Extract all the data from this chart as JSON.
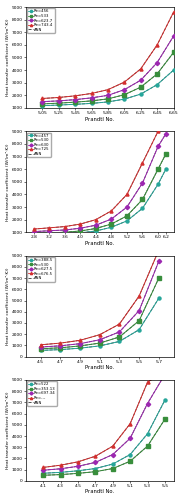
{
  "panels": [
    {
      "ylim": [
        1000,
        9000
      ],
      "yticks": [
        1000,
        2000,
        3000,
        4000,
        5000,
        6000,
        7000,
        8000,
        9000
      ],
      "ytick_labels": [
        "1000",
        "2000",
        "3000",
        "4000",
        "5000",
        "6000",
        "7000",
        "8000",
        "9000"
      ],
      "xlim": [
        4.85,
        6.65
      ],
      "xticks": [
        5.05,
        5.25,
        5.45,
        5.65,
        5.85,
        6.05,
        6.25,
        6.45,
        6.65
      ],
      "xtick_labels": [
        "5.05",
        "5.25",
        "5.45",
        "5.65",
        "5.85",
        "6.05",
        "6.25",
        "6.45",
        "6.65"
      ],
      "xlabel": "Prandtl No.",
      "ylabel": "Heat transfer coefficient (W/(m²·K))",
      "legend_labels": [
        "Re=456",
        "Re=533",
        "Re=623.7",
        "Re=743.4",
        "ANN"
      ],
      "series_colors": [
        "#26a69a",
        "#388e3c",
        "#9c27b0",
        "#d32f2f"
      ],
      "ann_color": "#333333",
      "pr_values": [
        5.05,
        5.25,
        5.45,
        5.65,
        5.85,
        6.05,
        6.25,
        6.45,
        6.65
      ],
      "series_data": [
        [
          1180,
          1230,
          1290,
          1360,
          1480,
          1700,
          2100,
          2850,
          4000
        ],
        [
          1320,
          1380,
          1460,
          1560,
          1720,
          2050,
          2650,
          3700,
          5400
        ],
        [
          1500,
          1560,
          1660,
          1800,
          2000,
          2450,
          3200,
          4600,
          6700
        ],
        [
          1750,
          1830,
          1960,
          2150,
          2450,
          3050,
          4100,
          6000,
          8600
        ]
      ],
      "ann_data": [
        [
          1180,
          1230,
          1290,
          1360,
          1480,
          1700,
          2100,
          2850,
          4000
        ],
        [
          1320,
          1380,
          1460,
          1560,
          1720,
          2050,
          2650,
          3700,
          5400
        ],
        [
          1500,
          1560,
          1660,
          1800,
          2000,
          2450,
          3200,
          4600,
          6700
        ],
        [
          1750,
          1830,
          1960,
          2150,
          2450,
          3050,
          4100,
          6000,
          8600
        ]
      ]
    },
    {
      "ylim": [
        1000,
        9000
      ],
      "yticks": [
        1000,
        2000,
        3000,
        4000,
        5000,
        6000,
        7000,
        8000,
        9000
      ],
      "ytick_labels": [
        "1000",
        "2000",
        "3000",
        "4000",
        "5000",
        "6000",
        "7000",
        "8000",
        "9000"
      ],
      "xlim": [
        2.6,
        6.4
      ],
      "xticks": [
        2.8,
        3.2,
        3.6,
        4.0,
        4.4,
        4.8,
        5.2,
        5.6,
        6.0,
        6.2
      ],
      "xtick_labels": [
        "2.8",
        "3.2",
        "3.6",
        "4.0",
        "4.4",
        "4.8",
        "5.2",
        "5.6",
        "6.0",
        "6.2"
      ],
      "xlabel": "Prandtl No.",
      "ylabel": "Heat transfer coefficient (W/(m²·K))",
      "legend_labels": [
        "Re=457",
        "Re=530",
        "Re=630",
        "Re=725",
        "ANN"
      ],
      "series_colors": [
        "#26a69a",
        "#388e3c",
        "#9c27b0",
        "#d32f2f"
      ],
      "ann_color": "#333333",
      "pr_values": [
        2.8,
        3.2,
        3.6,
        4.0,
        4.4,
        4.8,
        5.2,
        5.6,
        6.0,
        6.2
      ],
      "series_data": [
        [
          800,
          840,
          880,
          950,
          1100,
          1400,
          1900,
          2900,
          4800,
          6000
        ],
        [
          900,
          950,
          1000,
          1100,
          1300,
          1650,
          2300,
          3600,
          6000,
          7200
        ],
        [
          1050,
          1120,
          1180,
          1320,
          1560,
          2050,
          3000,
          4900,
          7800,
          8800
        ],
        [
          1250,
          1350,
          1450,
          1650,
          2000,
          2700,
          4000,
          6500,
          9000,
          9500
        ]
      ],
      "ann_data": [
        [
          800,
          840,
          880,
          950,
          1100,
          1400,
          1900,
          2900,
          4800,
          6000
        ],
        [
          900,
          950,
          1000,
          1100,
          1300,
          1650,
          2300,
          3600,
          6000,
          7200
        ],
        [
          1050,
          1120,
          1180,
          1320,
          1560,
          2050,
          3000,
          4900,
          7800,
          8800
        ],
        [
          1250,
          1350,
          1450,
          1650,
          2000,
          2700,
          4000,
          6500,
          9000,
          9500
        ]
      ]
    },
    {
      "ylim": [
        0,
        9000
      ],
      "yticks": [
        0,
        1000,
        2000,
        3000,
        4000,
        5000,
        6000,
        7000,
        8000,
        9000
      ],
      "ytick_labels": [
        "0",
        "1000",
        "2000",
        "3000",
        "4000",
        "5000",
        "6000",
        "7000",
        "8000",
        "9000"
      ],
      "xlim": [
        4.35,
        5.85
      ],
      "xticks": [
        4.5,
        4.7,
        4.9,
        5.1,
        5.3,
        5.5,
        5.7
      ],
      "xtick_labels": [
        "4.5",
        "4.7",
        "4.9",
        "5.1",
        "5.3",
        "5.5",
        "5.7"
      ],
      "xlabel": "Prandtl No.",
      "ylabel": "Heat transfer coefficient (W/(m²·K))",
      "legend_labels": [
        "Re=388.5",
        "Re=530",
        "Re=627.5",
        "Re=676.5",
        "ANN"
      ],
      "series_colors": [
        "#26a69a",
        "#388e3c",
        "#9c27b0",
        "#d32f2f"
      ],
      "ann_color": "#333333",
      "pr_values": [
        4.5,
        4.7,
        4.9,
        5.1,
        5.3,
        5.5,
        5.7
      ],
      "series_data": [
        [
          550,
          620,
          750,
          950,
          1350,
          2400,
          5200
        ],
        [
          700,
          780,
          950,
          1200,
          1750,
          3200,
          7000
        ],
        [
          850,
          960,
          1150,
          1500,
          2200,
          4100,
          8500
        ],
        [
          1050,
          1200,
          1450,
          1950,
          2900,
          5400,
          9500
        ]
      ],
      "ann_data": [
        [
          550,
          620,
          750,
          950,
          1350,
          2400,
          5200
        ],
        [
          700,
          780,
          950,
          1200,
          1750,
          3200,
          7000
        ],
        [
          850,
          960,
          1150,
          1500,
          2200,
          4100,
          8500
        ],
        [
          1050,
          1200,
          1450,
          1950,
          2900,
          5400,
          9500
        ]
      ]
    },
    {
      "ylim": [
        0,
        9000
      ],
      "yticks": [
        0,
        1000,
        2000,
        3000,
        4000,
        5000,
        6000,
        7000,
        8000,
        9000
      ],
      "ytick_labels": [
        "0",
        "1000",
        "2000",
        "3000",
        "4000",
        "5000",
        "6000",
        "7000",
        "8000",
        "9000"
      ],
      "xlim": [
        3.9,
        5.6
      ],
      "xticks": [
        4.1,
        4.3,
        4.5,
        4.7,
        4.9,
        5.1,
        5.3,
        5.5
      ],
      "xtick_labels": [
        "4.1",
        "4.3",
        "4.5",
        "4.7",
        "4.9",
        "5.1",
        "5.3",
        "5.5"
      ],
      "xlabel": "Prandtl No.",
      "ylabel": "Heat transfer coefficient (W/(m²·K))",
      "legend_labels": [
        "Re=522",
        "Re=353.13",
        "Re=697.34",
        "Re=---",
        "ANN"
      ],
      "series_colors": [
        "#26a69a",
        "#388e3c",
        "#9c27b0",
        "#d32f2f"
      ],
      "ann_color": "#333333",
      "pr_values": [
        4.1,
        4.3,
        4.5,
        4.7,
        4.9,
        5.1,
        5.3,
        5.5
      ],
      "series_data": [
        [
          680,
          760,
          900,
          1100,
          1500,
          2350,
          4200,
          7200
        ],
        [
          500,
          560,
          670,
          820,
          1100,
          1750,
          3100,
          5500
        ],
        [
          950,
          1080,
          1300,
          1650,
          2350,
          3800,
          6900,
          9500
        ],
        [
          1200,
          1400,
          1700,
          2200,
          3100,
          5100,
          8800,
          9800
        ]
      ],
      "ann_data": [
        [
          680,
          760,
          900,
          1100,
          1500,
          2350,
          4200,
          7200
        ],
        [
          500,
          560,
          670,
          820,
          1100,
          1750,
          3100,
          5500
        ],
        [
          950,
          1080,
          1300,
          1650,
          2350,
          3800,
          6900,
          9500
        ],
        [
          1200,
          1400,
          1700,
          2200,
          3100,
          5100,
          8800,
          9800
        ]
      ]
    }
  ]
}
